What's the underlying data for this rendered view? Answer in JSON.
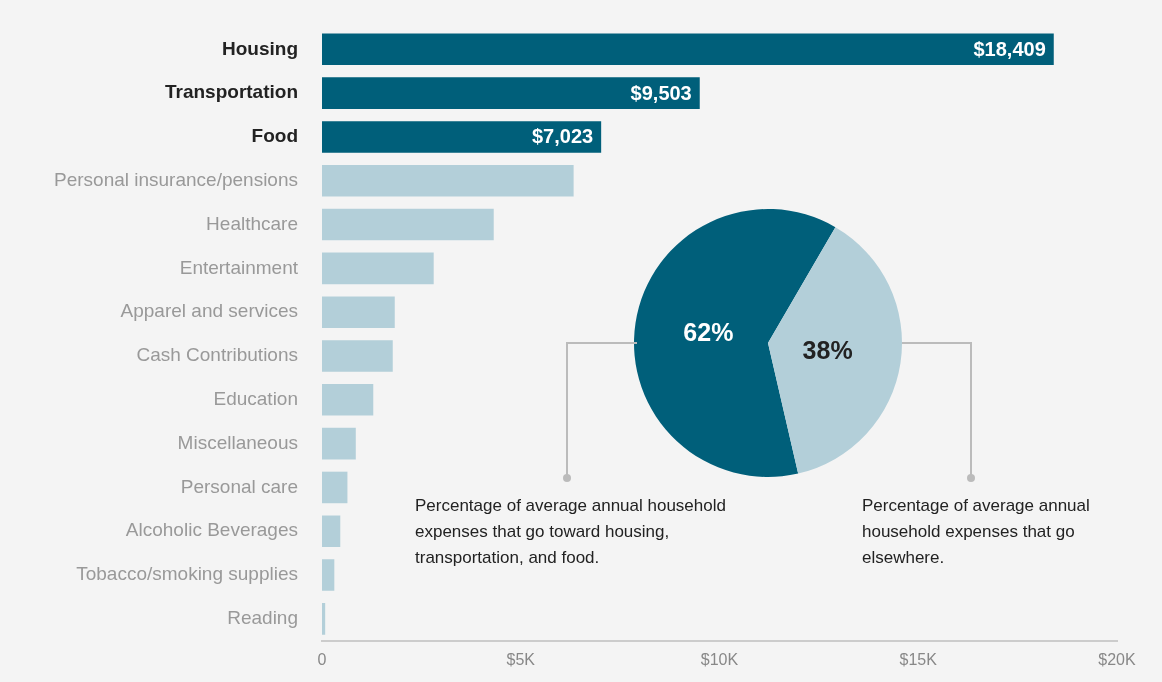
{
  "chart_data": [
    {
      "type": "bar",
      "orientation": "horizontal",
      "categories": [
        "Housing",
        "Transportation",
        "Food",
        "Personal insurance/pensions",
        "Healthcare",
        "Entertainment",
        "Apparel and services",
        "Cash Contributions",
        "Education",
        "Miscellaneous",
        "Personal care",
        "Alcoholic Beverages",
        "Tobacco/smoking supplies",
        "Reading"
      ],
      "values": [
        18409,
        9503,
        7023,
        6330,
        4320,
        2810,
        1830,
        1780,
        1290,
        850,
        640,
        460,
        310,
        80
      ],
      "colors": [
        "#005f7a",
        "#005f7a",
        "#005f7a",
        "#b3cfd9",
        "#b3cfd9",
        "#b3cfd9",
        "#b3cfd9",
        "#b3cfd9",
        "#b3cfd9",
        "#b3cfd9",
        "#b3cfd9",
        "#b3cfd9",
        "#b3cfd9",
        "#b3cfd9"
      ],
      "value_labels": [
        "$18,409",
        "$9,503",
        "$7,023",
        null,
        null,
        null,
        null,
        null,
        null,
        null,
        null,
        null,
        null,
        null
      ],
      "xlim": [
        0,
        20000
      ],
      "xticks": [
        0,
        {
          "value": 5000,
          "label": "$5K"
        },
        {
          "value": 10000,
          "label": "$10K"
        },
        {
          "value": 15000,
          "label": "$15K"
        },
        {
          "value": 20000,
          "label": "$20K"
        }
      ],
      "grid": false,
      "legend": false
    },
    {
      "type": "pie",
      "categories": [
        null,
        null
      ],
      "values": [
        62,
        38
      ],
      "colors": [
        "#005f7a",
        "#b3cfd9"
      ],
      "value_labels": [
        "62%",
        "38%"
      ],
      "annotations": [
        "Percentage of average annual household expenses that go toward housing, transportation, and food.",
        "Percentage of average annual household expenses that go elsewhere."
      ],
      "legend": false
    }
  ]
}
